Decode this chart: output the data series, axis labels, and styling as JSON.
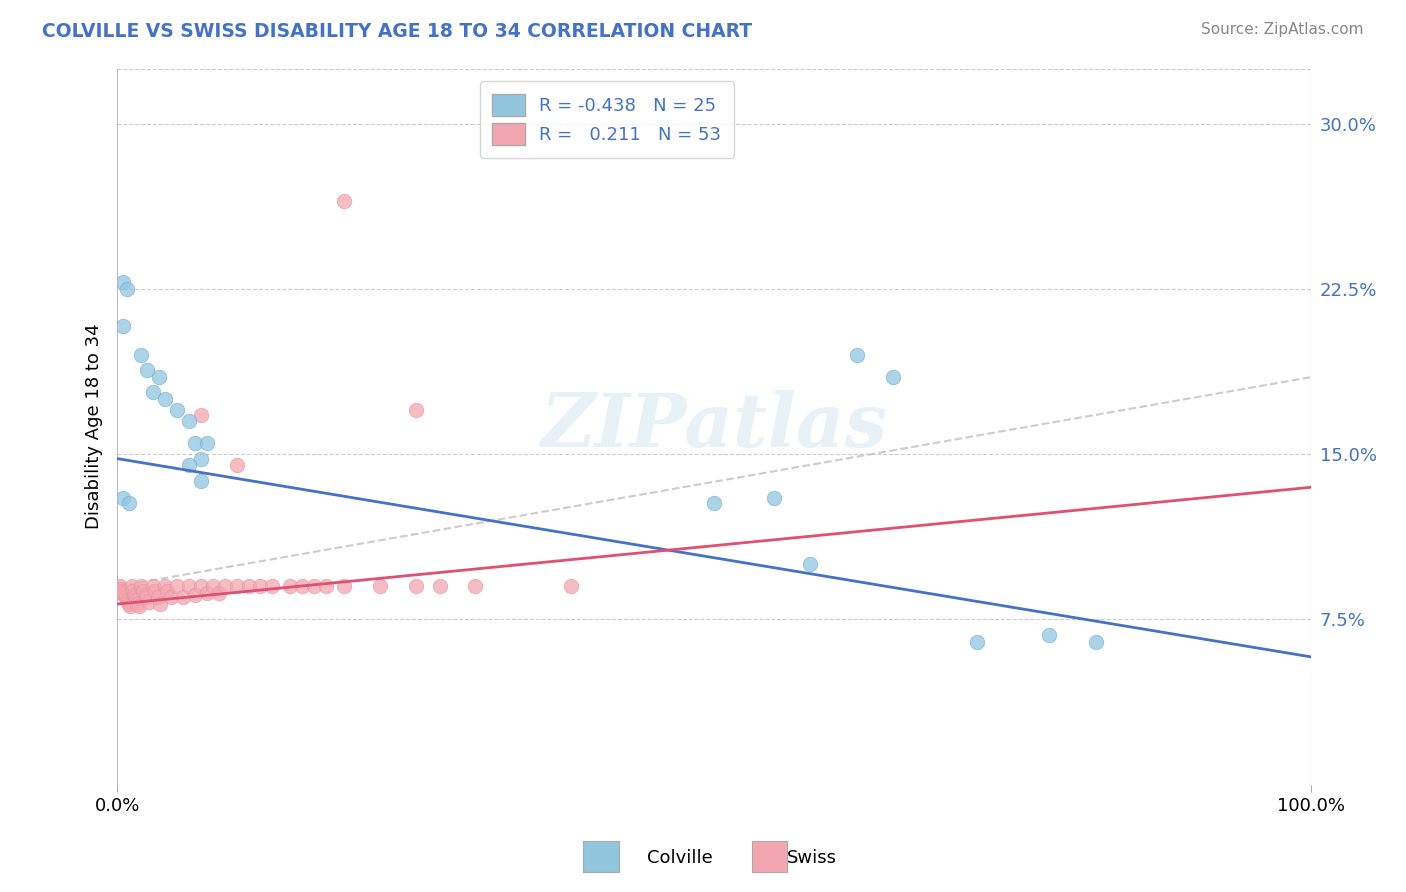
{
  "title": "COLVILLE VS SWISS DISABILITY AGE 18 TO 34 CORRELATION CHART",
  "source": "Source: ZipAtlas.com",
  "ylabel": "Disability Age 18 to 34",
  "xlim": [
    0.0,
    1.0
  ],
  "ylim": [
    0.0,
    0.325
  ],
  "yticks": [
    0.075,
    0.15,
    0.225,
    0.3
  ],
  "ytick_labels": [
    "7.5%",
    "15.0%",
    "22.5%",
    "30.0%"
  ],
  "legend_r_colville": "-0.438",
  "legend_n_colville": "25",
  "legend_r_swiss": "0.211",
  "legend_n_swiss": "53",
  "colville_color": "#92C5DE",
  "swiss_color": "#F4A6B0",
  "colville_line_color": "#4472C4",
  "swiss_line_color": "#E05070",
  "trend_line_color": "#C0C0C0",
  "background_color": "#FFFFFF",
  "title_color": "#4472C4",
  "tick_color": "#4472C4",
  "colville_x": [
    0.005,
    0.008,
    0.01,
    0.015,
    0.02,
    0.025,
    0.03,
    0.035,
    0.04,
    0.045,
    0.05,
    0.06,
    0.065,
    0.07,
    0.08,
    0.5,
    0.55,
    0.62,
    0.65,
    0.68,
    0.72,
    0.78,
    0.82,
    0.58,
    0.5
  ],
  "colville_y": [
    0.225,
    0.23,
    0.22,
    0.215,
    0.2,
    0.185,
    0.175,
    0.19,
    0.17,
    0.165,
    0.175,
    0.165,
    0.155,
    0.155,
    0.145,
    0.13,
    0.13,
    0.195,
    0.185,
    0.065,
    0.068,
    0.068,
    0.068,
    0.1,
    0.095
  ],
  "swiss_x": [
    0.0,
    0.0,
    0.0,
    0.0,
    0.0,
    0.0,
    0.0,
    0.0,
    0.0,
    0.0,
    0.01,
    0.01,
    0.01,
    0.01,
    0.01,
    0.01,
    0.01,
    0.02,
    0.02,
    0.02,
    0.02,
    0.02,
    0.03,
    0.03,
    0.03,
    0.03,
    0.04,
    0.04,
    0.04,
    0.05,
    0.05,
    0.06,
    0.06,
    0.07,
    0.07,
    0.08,
    0.08,
    0.09,
    0.1,
    0.11,
    0.12,
    0.13,
    0.14,
    0.15,
    0.16,
    0.18,
    0.19,
    0.22,
    0.25,
    0.27,
    0.3,
    0.38,
    0.42
  ],
  "swiss_y": [
    0.09,
    0.088,
    0.086,
    0.084,
    0.083,
    0.082,
    0.082,
    0.081,
    0.08,
    0.079,
    0.09,
    0.088,
    0.086,
    0.084,
    0.082,
    0.08,
    0.079,
    0.09,
    0.088,
    0.087,
    0.085,
    0.083,
    0.09,
    0.088,
    0.086,
    0.08,
    0.09,
    0.088,
    0.085,
    0.09,
    0.085,
    0.09,
    0.086,
    0.09,
    0.088,
    0.09,
    0.087,
    0.09,
    0.09,
    0.09,
    0.09,
    0.09,
    0.09,
    0.09,
    0.09,
    0.09,
    0.09,
    0.09,
    0.09,
    0.09,
    0.09,
    0.09,
    0.09
  ],
  "colville_line_x": [
    0.0,
    1.0
  ],
  "colville_line_y": [
    0.148,
    0.058
  ],
  "swiss_line_x": [
    0.0,
    1.0
  ],
  "swiss_line_y": [
    0.082,
    0.135
  ],
  "dashed_line_x": [
    0.0,
    1.0
  ],
  "dashed_line_y": [
    0.09,
    0.185
  ]
}
